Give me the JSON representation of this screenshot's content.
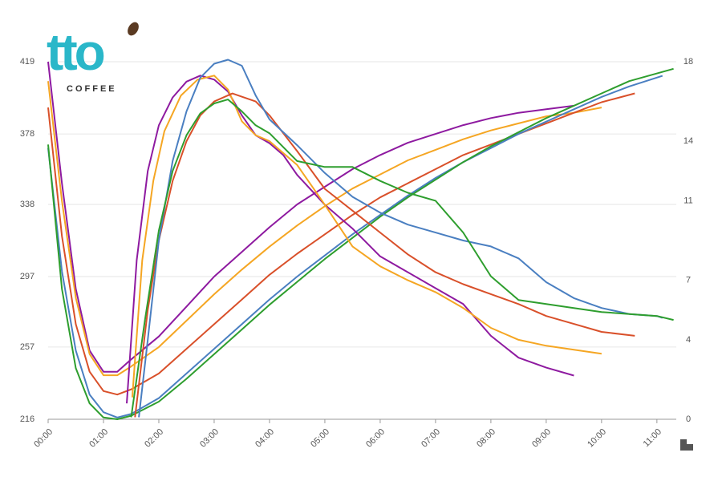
{
  "logo": {
    "text": "tto",
    "subtext": "COFFEE"
  },
  "chart_data": {
    "type": "line",
    "xlim": [
      0,
      11.35
    ],
    "xticks": [
      {
        "value": 0,
        "label": "00:00"
      },
      {
        "value": 1,
        "label": "01:00"
      },
      {
        "value": 2,
        "label": "02:00"
      },
      {
        "value": 3,
        "label": "03:00"
      },
      {
        "value": 4,
        "label": "04:00"
      },
      {
        "value": 5,
        "label": "05:00"
      },
      {
        "value": 6,
        "label": "06:00"
      },
      {
        "value": 7,
        "label": "07:00"
      },
      {
        "value": 8,
        "label": "08:00"
      },
      {
        "value": 9,
        "label": "09:00"
      },
      {
        "value": 10,
        "label": "10:00"
      },
      {
        "value": 11,
        "label": "11:00"
      }
    ],
    "ylim": [
      216,
      419
    ],
    "yticks": [
      216,
      257,
      297,
      338,
      378,
      419
    ],
    "y2lim": [
      0,
      18
    ],
    "y2ticks": [
      0,
      4,
      7,
      11,
      14,
      18
    ],
    "grid": true,
    "series": [
      {
        "color": "#8e1aa0",
        "x": [
          0,
          0.25,
          0.5,
          0.75,
          1,
          1.25,
          1.5,
          2,
          2.5,
          3,
          3.5,
          4,
          4.5,
          5,
          5.5,
          6,
          6.5,
          7,
          7.5,
          8,
          8.5,
          9,
          9.5
        ],
        "values": [
          419,
          350,
          290,
          255,
          243,
          243,
          250,
          263,
          280,
          297,
          311,
          325,
          338,
          348,
          358,
          366,
          373,
          378,
          383,
          387,
          390,
          392,
          394
        ]
      },
      {
        "color": "#f5a623",
        "x": [
          0,
          0.25,
          0.5,
          0.75,
          1,
          1.25,
          1.5,
          2,
          2.5,
          3,
          3.5,
          4,
          4.5,
          5,
          5.5,
          6,
          6.5,
          7,
          7.5,
          8,
          8.5,
          9,
          9.5,
          10
        ],
        "values": [
          408,
          340,
          285,
          253,
          241,
          241,
          246,
          257,
          272,
          287,
          301,
          314,
          326,
          337,
          347,
          355,
          363,
          369,
          375,
          380,
          384,
          388,
          390,
          393
        ]
      },
      {
        "color": "#d9502a",
        "x": [
          0,
          0.25,
          0.5,
          0.75,
          1,
          1.25,
          1.5,
          2,
          2.5,
          3,
          3.5,
          4,
          4.5,
          5,
          5.5,
          6,
          6.5,
          7,
          7.5,
          8,
          8.5,
          9,
          9.5,
          10,
          10.6
        ],
        "values": [
          393,
          320,
          270,
          243,
          232,
          230,
          233,
          242,
          256,
          270,
          284,
          298,
          310,
          321,
          332,
          342,
          350,
          358,
          366,
          372,
          378,
          384,
          390,
          396,
          401
        ]
      },
      {
        "color": "#4a7fc1",
        "x": [
          0,
          0.25,
          0.5,
          0.75,
          1,
          1.25,
          1.5,
          2,
          2.5,
          3,
          3.5,
          4,
          4.5,
          5,
          5.5,
          6,
          6.5,
          7,
          7.5,
          8,
          8.5,
          9,
          9.5,
          10,
          10.5,
          11.1
        ],
        "values": [
          370,
          300,
          255,
          230,
          220,
          217,
          219,
          228,
          242,
          256,
          270,
          284,
          297,
          309,
          321,
          332,
          343,
          353,
          362,
          370,
          378,
          385,
          392,
          399,
          405,
          411
        ]
      },
      {
        "color": "#2e9e2e",
        "x": [
          0,
          0.25,
          0.5,
          0.75,
          1,
          1.25,
          1.5,
          2,
          2.5,
          3,
          3.5,
          4,
          4.5,
          5,
          5.5,
          6,
          6.5,
          7,
          7.5,
          8,
          8.5,
          9,
          9.5,
          10,
          10.5,
          11.3
        ],
        "values": [
          372,
          290,
          245,
          225,
          217,
          216,
          218,
          226,
          239,
          253,
          267,
          281,
          294,
          307,
          319,
          331,
          342,
          352,
          362,
          371,
          379,
          387,
          394,
          401,
          408,
          415
        ]
      },
      {
        "color": "#8e1aa0",
        "axis": "y2",
        "x": [
          1.42,
          1.6,
          1.8,
          2,
          2.25,
          2.5,
          2.75,
          3,
          3.25,
          3.5,
          3.75,
          4,
          4.25,
          4.5,
          5,
          5.5,
          6,
          6.5,
          7,
          7.5,
          8,
          8.5,
          9,
          9.5
        ],
        "values": [
          0.8,
          8,
          12.5,
          14.8,
          16.2,
          17,
          17.3,
          17.1,
          16.5,
          15.3,
          14.3,
          13.9,
          13.3,
          12.3,
          10.8,
          9.6,
          8.2,
          7.4,
          6.6,
          5.8,
          4.2,
          3.1,
          2.6,
          2.2
        ]
      },
      {
        "color": "#f5a623",
        "axis": "y2",
        "x": [
          1.52,
          1.7,
          1.9,
          2.1,
          2.4,
          2.7,
          3,
          3.25,
          3.5,
          3.75,
          4,
          4.5,
          5,
          5.5,
          6,
          6.5,
          7,
          7.5,
          8,
          8.5,
          9,
          9.5,
          10
        ],
        "values": [
          1.1,
          8,
          12,
          14.5,
          16.3,
          17.1,
          17.3,
          16.6,
          15,
          14.3,
          14,
          12.8,
          10.8,
          8.7,
          7.7,
          7,
          6.4,
          5.6,
          4.6,
          4,
          3.7,
          3.5,
          3.3
        ]
      },
      {
        "color": "#d9502a",
        "axis": "y2",
        "x": [
          1.57,
          1.8,
          2,
          2.25,
          2.5,
          2.75,
          3,
          3.33,
          3.75,
          4,
          4.5,
          5,
          5.5,
          6,
          6.5,
          7,
          7.5,
          8,
          8.5,
          9,
          9.5,
          10,
          10.6
        ],
        "values": [
          0.1,
          5.5,
          9,
          12,
          14,
          15.3,
          16,
          16.4,
          16,
          15.3,
          13.5,
          11.6,
          10.5,
          9.4,
          8.3,
          7.4,
          6.8,
          6.3,
          5.8,
          5.2,
          4.8,
          4.4,
          4.2
        ]
      },
      {
        "color": "#4a7fc1",
        "axis": "y2",
        "x": [
          1.64,
          1.8,
          2,
          2.25,
          2.5,
          2.75,
          3,
          3.25,
          3.5,
          3.75,
          4,
          4.5,
          5,
          5.5,
          6,
          6.5,
          7,
          7.5,
          8,
          8.5,
          9,
          9.5,
          10,
          10.5,
          11,
          11.1
        ],
        "values": [
          0.1,
          4,
          9,
          13,
          15.5,
          17.2,
          17.9,
          18.1,
          17.8,
          16.3,
          15.1,
          13.8,
          12.4,
          11.2,
          10.4,
          9.8,
          9.4,
          9,
          8.7,
          8.1,
          6.9,
          6.1,
          5.6,
          5.3,
          5.2,
          5.1
        ]
      },
      {
        "color": "#2e9e2e",
        "axis": "y2",
        "x": [
          1.5,
          1.75,
          2,
          2.25,
          2.5,
          2.75,
          3,
          3.25,
          3.5,
          3.75,
          4,
          4.5,
          5,
          5.5,
          6,
          6.5,
          7,
          7.5,
          8,
          8.5,
          9,
          10,
          11,
          11.3
        ],
        "values": [
          0.1,
          5,
          9.5,
          12.5,
          14.3,
          15.4,
          15.9,
          16.1,
          15.5,
          14.8,
          14.4,
          13,
          12.7,
          12.7,
          12,
          11.4,
          11,
          9.4,
          7.2,
          6,
          5.8,
          5.4,
          5.2,
          5
        ]
      }
    ]
  }
}
